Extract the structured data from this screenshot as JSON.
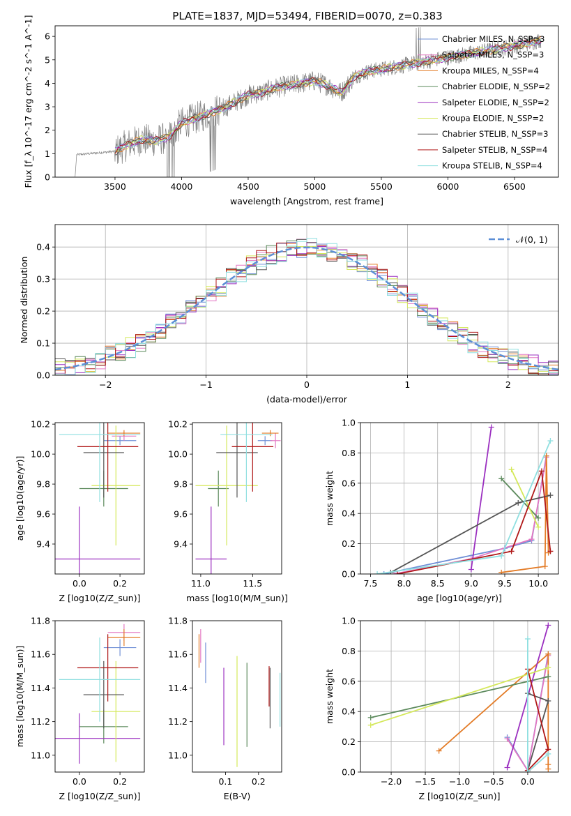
{
  "figure_title": "PLATE=1837, MJD=53494, FIBERID=0070, z=0.383",
  "colors": {
    "Chabrier MILES": "#6f8fd6",
    "Salpeter MILES": "#e377c2",
    "Kroupa MILES": "#e37b26",
    "Chabrier ELODIE": "#5c8a5c",
    "Salpeter ELODIE": "#9b30c0",
    "Kroupa ELODIE": "#d4e85a",
    "Chabrier STELIB": "#555555",
    "Salpeter STELIB": "#b01818",
    "Kroupa STELIB": "#8fdfe0",
    "data": "#808080",
    "normal": "#5b8ed6"
  },
  "chart_data": [
    {
      "id": "spectrum",
      "type": "line",
      "title": "PLATE=1837, MJD=53494, FIBERID=0070, z=0.383",
      "xlabel": "wavelength [Angstrom, rest frame]",
      "ylabel": "Flux [f_λ 10^-17 erg cm^-2 s^-1 A^-1]",
      "xlim": [
        3050,
        6830
      ],
      "ylim": [
        0,
        6.45
      ],
      "xticks": [
        3500,
        4000,
        4500,
        5000,
        5500,
        6000,
        6500
      ],
      "yticks": [
        0,
        1,
        2,
        3,
        4,
        5,
        6
      ],
      "legend_position": "top-right",
      "series_x": [
        3200,
        3300,
        3400,
        3500,
        3600,
        3700,
        3800,
        3900,
        4000,
        4100,
        4200,
        4300,
        4400,
        4500,
        4600,
        4700,
        4800,
        4900,
        5000,
        5100,
        5200,
        5300,
        5400,
        5500,
        5600,
        5700,
        5800,
        5900,
        6000,
        6100,
        6200,
        6300,
        6400,
        6500,
        6600,
        6700
      ],
      "model_y": [
        0.95,
        1.0,
        1.05,
        1.1,
        1.4,
        1.6,
        1.55,
        1.7,
        2.3,
        2.5,
        2.7,
        2.9,
        3.2,
        3.5,
        3.6,
        3.8,
        3.9,
        4.0,
        4.1,
        3.9,
        3.6,
        4.3,
        4.5,
        4.6,
        4.7,
        4.8,
        4.9,
        5.0,
        5.1,
        5.2,
        5.3,
        5.4,
        5.5,
        5.6,
        5.7,
        5.85
      ],
      "legend": [
        "Chabrier MILES, N_SSP=3",
        "Salpeter MILES, N_SSP=3",
        "Kroupa MILES, N_SSP=4",
        "Chabrier ELODIE, N_SSP=2",
        "Salpeter ELODIE, N_SSP=2",
        "Kroupa ELODIE, N_SSP=2",
        "Chabrier STELIB, N_SSP=3",
        "Salpeter STELIB, N_SSP=4",
        "Kroupa STELIB, N_SSP=4"
      ]
    },
    {
      "id": "residuals",
      "type": "line",
      "xlabel": "(data-model)/error",
      "ylabel": "Normed distribution",
      "xlim": [
        -2.5,
        2.5
      ],
      "ylim": [
        0,
        0.47
      ],
      "xticks": [
        -2,
        -1,
        0,
        1,
        2
      ],
      "yticks": [
        0.0,
        0.1,
        0.2,
        0.3,
        0.4
      ],
      "grid": true,
      "legend_position": "top-right",
      "legend": [
        "N(0,1)"
      ],
      "curve": "standard normal pdf",
      "hist_bin_width": 0.1
    },
    {
      "id": "age-vs-Z",
      "type": "scatter",
      "xlabel": "Z [log10(Z/Z_sun)]",
      "ylabel": "age [log10(age/yr)]",
      "xlim": [
        -0.12,
        0.32
      ],
      "ylim": [
        9.2,
        10.21
      ],
      "xticks": [
        0.0,
        0.2
      ],
      "yticks": [
        9.4,
        9.6,
        9.8,
        10.0,
        10.2
      ],
      "points": [
        {
          "model": "Chabrier MILES",
          "x": 0.2,
          "xerr": 0.08,
          "y": 10.09,
          "yerr": 0.03
        },
        {
          "model": "Salpeter MILES",
          "x": 0.22,
          "xerr": 0.06,
          "y": 10.12,
          "yerr": 0.03
        },
        {
          "model": "Kroupa MILES",
          "x": 0.22,
          "xerr": 0.08,
          "y": 10.14,
          "yerr": 0.02
        },
        {
          "model": "Chabrier ELODIE",
          "x": 0.12,
          "xerr": 0.12,
          "y": 9.77,
          "yerr": 0.12
        },
        {
          "model": "Salpeter ELODIE",
          "x": 0.0,
          "xerr": 0.3,
          "y": 9.3,
          "yerr": 0.35
        },
        {
          "model": "Kroupa ELODIE",
          "x": 0.18,
          "xerr": 0.12,
          "y": 9.79,
          "yerr": 0.4
        },
        {
          "model": "Chabrier STELIB",
          "x": 0.12,
          "xerr": 0.1,
          "y": 10.01,
          "yerr": 0.3
        },
        {
          "model": "Salpeter STELIB",
          "x": 0.14,
          "xerr": 0.15,
          "y": 10.05,
          "yerr": 0.3
        },
        {
          "model": "Kroupa STELIB",
          "x": 0.1,
          "xerr": 0.2,
          "y": 10.13,
          "yerr": 0.45
        }
      ]
    },
    {
      "id": "age-vs-mass",
      "type": "scatter",
      "xlabel": "mass [log10(M/M_sun)]",
      "ylabel": "",
      "xlim": [
        10.92,
        11.78
      ],
      "ylim": [
        9.2,
        10.21
      ],
      "xticks": [
        11.0,
        11.5
      ],
      "yticks": [
        9.4,
        9.6,
        9.8,
        10.0,
        10.2
      ],
      "points": [
        {
          "model": "Chabrier MILES",
          "x": 11.62,
          "xerr": 0.07,
          "y": 10.09,
          "yerr": 0.03
        },
        {
          "model": "Salpeter MILES",
          "x": 11.72,
          "xerr": 0.05,
          "y": 10.09,
          "yerr": 0.05
        },
        {
          "model": "Kroupa MILES",
          "x": 11.67,
          "xerr": 0.08,
          "y": 10.14,
          "yerr": 0.02
        },
        {
          "model": "Chabrier ELODIE",
          "x": 11.17,
          "xerr": 0.1,
          "y": 9.77,
          "yerr": 0.12
        },
        {
          "model": "Salpeter ELODIE",
          "x": 11.1,
          "xerr": 0.15,
          "y": 9.3,
          "yerr": 0.35
        },
        {
          "model": "Kroupa ELODIE",
          "x": 11.25,
          "xerr": 0.3,
          "y": 9.79,
          "yerr": 0.4
        },
        {
          "model": "Chabrier STELIB",
          "x": 11.35,
          "xerr": 0.2,
          "y": 10.01,
          "yerr": 0.3
        },
        {
          "model": "Salpeter STELIB",
          "x": 11.5,
          "xerr": 0.2,
          "y": 10.05,
          "yerr": 0.3
        },
        {
          "model": "Kroupa STELIB",
          "x": 11.44,
          "xerr": 0.25,
          "y": 10.13,
          "yerr": 0.45
        }
      ]
    },
    {
      "id": "weight-vs-age",
      "type": "line",
      "xlabel": "age [log10(age/yr)]",
      "ylabel": "mass weight",
      "xlim": [
        7.35,
        10.3
      ],
      "ylim": [
        0,
        1.0
      ],
      "xticks": [
        7.5,
        8.0,
        8.5,
        9.0,
        9.5,
        10.0
      ],
      "yticks": [
        0.0,
        0.2,
        0.4,
        0.6,
        0.8,
        1.0
      ],
      "grid": true,
      "series": [
        {
          "model": "Chabrier MILES",
          "points": [
            [
              7.7,
              0.0
            ],
            [
              9.5,
              0.17
            ],
            [
              9.9,
              0.22
            ],
            [
              10.12,
              0.78
            ]
          ]
        },
        {
          "model": "Salpeter MILES",
          "points": [
            [
              7.85,
              0.0
            ],
            [
              9.0,
              0.1
            ],
            [
              9.9,
              0.23
            ],
            [
              10.12,
              0.77
            ]
          ]
        },
        {
          "model": "Kroupa MILES",
          "points": [
            [
              9.45,
              0.01
            ],
            [
              10.1,
              0.05
            ],
            [
              10.12,
              0.78
            ],
            [
              10.15,
              0.14
            ]
          ]
        },
        {
          "model": "Chabrier ELODIE",
          "points": [
            [
              9.45,
              0.63
            ],
            [
              10.0,
              0.37
            ]
          ]
        },
        {
          "model": "Salpeter ELODIE",
          "points": [
            [
              9.0,
              0.03
            ],
            [
              9.3,
              0.97
            ]
          ]
        },
        {
          "model": "Kroupa ELODIE",
          "points": [
            [
              9.6,
              0.69
            ],
            [
              10.0,
              0.31
            ]
          ]
        },
        {
          "model": "Chabrier STELIB",
          "points": [
            [
              7.8,
              0.01
            ],
            [
              9.7,
              0.47
            ],
            [
              10.18,
              0.52
            ]
          ]
        },
        {
          "model": "Salpeter STELIB",
          "points": [
            [
              7.9,
              0.0
            ],
            [
              9.6,
              0.15
            ],
            [
              10.05,
              0.68
            ],
            [
              10.18,
              0.15
            ]
          ]
        },
        {
          "model": "Kroupa STELIB",
          "points": [
            [
              7.6,
              0.0
            ],
            [
              9.45,
              0.12
            ],
            [
              10.18,
              0.88
            ]
          ]
        }
      ]
    },
    {
      "id": "mass-vs-Z",
      "type": "scatter",
      "xlabel": "Z [log10(Z/Z_sun)]",
      "ylabel": "mass [log10(M/M_sun)]",
      "xlim": [
        -0.12,
        0.32
      ],
      "ylim": [
        10.9,
        11.8
      ],
      "xticks": [
        0.0,
        0.2
      ],
      "yticks": [
        11.0,
        11.2,
        11.4,
        11.6,
        11.8
      ],
      "points": [
        {
          "model": "Chabrier MILES",
          "x": 0.2,
          "xerr": 0.08,
          "y": 11.64,
          "yerr": 0.05
        },
        {
          "model": "Salpeter MILES",
          "x": 0.22,
          "xerr": 0.08,
          "y": 11.73,
          "yerr": 0.05
        },
        {
          "model": "Kroupa MILES",
          "x": 0.22,
          "xerr": 0.08,
          "y": 11.7,
          "yerr": 0.05
        },
        {
          "model": "Chabrier ELODIE",
          "x": 0.12,
          "xerr": 0.12,
          "y": 11.17,
          "yerr": 0.1
        },
        {
          "model": "Salpeter ELODIE",
          "x": 0.0,
          "xerr": 0.3,
          "y": 11.1,
          "yerr": 0.15
        },
        {
          "model": "Kroupa ELODIE",
          "x": 0.18,
          "xerr": 0.12,
          "y": 11.26,
          "yerr": 0.3
        },
        {
          "model": "Chabrier STELIB",
          "x": 0.12,
          "xerr": 0.1,
          "y": 11.36,
          "yerr": 0.2
        },
        {
          "model": "Salpeter STELIB",
          "x": 0.14,
          "xerr": 0.15,
          "y": 11.52,
          "yerr": 0.2
        },
        {
          "model": "Kroupa STELIB",
          "x": 0.1,
          "xerr": 0.2,
          "y": 11.45,
          "yerr": 0.25
        }
      ]
    },
    {
      "id": "mass-vs-EBV",
      "type": "scatter",
      "xlabel": "E(B-V)",
      "ylabel": "",
      "xlim": [
        0.0,
        0.27
      ],
      "ylim": [
        10.9,
        11.8
      ],
      "xticks": [
        0.1,
        0.2
      ],
      "yticks": [
        11.0,
        11.2,
        11.4,
        11.6,
        11.8
      ],
      "points": [
        {
          "model": "Chabrier MILES",
          "x": 0.04,
          "y": 11.55,
          "yerr": 0.12
        },
        {
          "model": "Salpeter MILES",
          "x": 0.025,
          "y": 11.65,
          "yerr": 0.1
        },
        {
          "model": "Kroupa MILES",
          "x": 0.02,
          "y": 11.62,
          "yerr": 0.1
        },
        {
          "model": "Chabrier ELODIE",
          "x": 0.165,
          "y": 11.3,
          "yerr": 0.25
        },
        {
          "model": "Salpeter ELODIE",
          "x": 0.095,
          "y": 11.29,
          "yerr": 0.23
        },
        {
          "model": "Kroupa ELODIE",
          "x": 0.135,
          "y": 11.26,
          "yerr": 0.33
        },
        {
          "model": "Chabrier STELIB",
          "x": 0.235,
          "y": 11.34,
          "yerr": 0.18
        },
        {
          "model": "Salpeter STELIB",
          "x": 0.232,
          "y": 11.41,
          "yerr": 0.12
        },
        {
          "model": "Kroupa STELIB",
          "x": 0.265,
          "y": 11.33,
          "yerr": 0.16
        }
      ]
    },
    {
      "id": "weight-vs-Z",
      "type": "line",
      "xlabel": "Z [log10(Z/Z_sun)]",
      "ylabel": "mass weight",
      "xlim": [
        -2.45,
        0.45
      ],
      "ylim": [
        0,
        1.0
      ],
      "xticks": [
        -2.0,
        -1.5,
        -1.0,
        -0.5,
        0.0
      ],
      "yticks": [
        0.0,
        0.2,
        0.4,
        0.6,
        0.8,
        1.0
      ],
      "grid": true,
      "series": [
        {
          "model": "Chabrier MILES",
          "points": [
            [
              -0.3,
              0.23
            ],
            [
              0.0,
              0.01
            ],
            [
              0.3,
              0.78
            ]
          ]
        },
        {
          "model": "Salpeter MILES",
          "points": [
            [
              -0.3,
              0.22
            ],
            [
              0.0,
              0.01
            ],
            [
              0.3,
              0.77
            ]
          ]
        },
        {
          "model": "Kroupa MILES",
          "points": [
            [
              -1.3,
              0.14
            ],
            [
              0.3,
              0.78
            ],
            [
              0.3,
              0.05
            ],
            [
              0.3,
              0.02
            ]
          ]
        },
        {
          "model": "Chabrier ELODIE",
          "points": [
            [
              -2.3,
              0.36
            ],
            [
              0.3,
              0.63
            ]
          ]
        },
        {
          "model": "Salpeter ELODIE",
          "points": [
            [
              -0.3,
              0.03
            ],
            [
              0.3,
              0.97
            ]
          ]
        },
        {
          "model": "Kroupa ELODIE",
          "points": [
            [
              -2.3,
              0.31
            ],
            [
              0.3,
              0.69
            ]
          ]
        },
        {
          "model": "Chabrier STELIB",
          "points": [
            [
              0.0,
              0.52
            ],
            [
              0.3,
              0.47
            ],
            [
              0.0,
              0.01
            ]
          ]
        },
        {
          "model": "Salpeter STELIB",
          "points": [
            [
              0.0,
              0.68
            ],
            [
              0.3,
              0.15
            ],
            [
              0.0,
              0.01
            ]
          ]
        },
        {
          "model": "Kroupa STELIB",
          "points": [
            [
              0.0,
              0.88
            ],
            [
              0.0,
              0.0
            ],
            [
              0.3,
              0.12
            ]
          ]
        }
      ]
    }
  ]
}
